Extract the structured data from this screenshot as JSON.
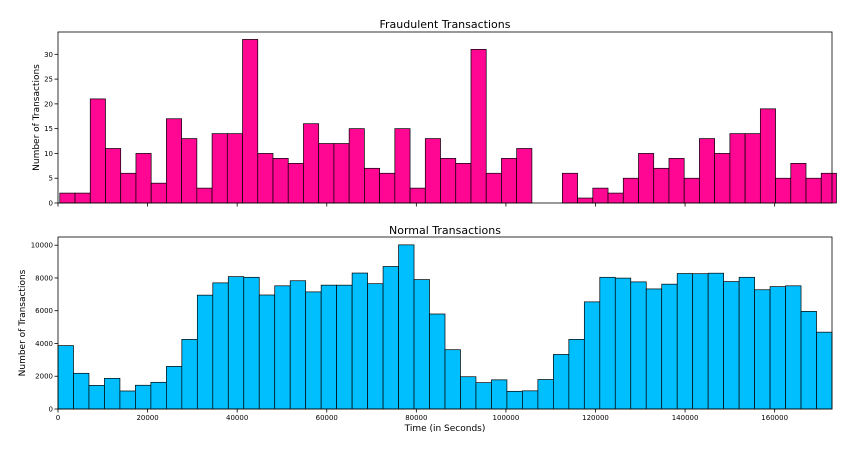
{
  "chart_data": [
    {
      "type": "bar",
      "title": "Fraudulent Transactions",
      "xlabel": "",
      "ylabel": "Number of Transactions",
      "xlim": [
        0,
        172800
      ],
      "ylim": [
        0,
        34.5
      ],
      "y_ticks": [
        0,
        5,
        10,
        15,
        20,
        25,
        30
      ],
      "x_ticks": [
        0,
        20000,
        40000,
        60000,
        80000,
        100000,
        120000,
        140000,
        160000
      ],
      "x_tick_labels_visible": false,
      "bin_width": 3400,
      "bin_start": 400,
      "bar_color": "#ff0693",
      "edge_color": "#000000",
      "values": [
        2,
        2,
        21,
        11,
        6,
        10,
        4,
        17,
        13,
        3,
        14,
        14,
        33,
        10,
        9,
        8,
        16,
        12,
        12,
        15,
        7,
        6,
        15,
        3,
        13,
        9,
        8,
        31,
        6,
        9,
        11,
        0,
        0,
        6,
        1,
        3,
        2,
        5,
        10,
        7,
        9,
        5,
        13,
        10,
        14,
        14,
        19,
        5,
        8,
        5,
        6
      ]
    },
    {
      "type": "bar",
      "title": "Normal Transactions",
      "xlabel": "Time (in Seconds)",
      "ylabel": "Number of Transactions",
      "xlim": [
        0,
        172800
      ],
      "ylim": [
        0,
        10500
      ],
      "y_ticks": [
        0,
        2000,
        4000,
        6000,
        8000,
        10000
      ],
      "x_ticks": [
        0,
        20000,
        40000,
        60000,
        80000,
        100000,
        120000,
        140000,
        160000
      ],
      "x_tick_labels_visible": true,
      "bin_width": 3456,
      "bin_start": 0,
      "bar_color": "#00bfff",
      "edge_color": "#000000",
      "values": [
        3870,
        2180,
        1440,
        1870,
        1100,
        1450,
        1630,
        2600,
        4250,
        6950,
        7700,
        8080,
        8040,
        6960,
        7520,
        7830,
        7150,
        7560,
        7560,
        8300,
        7650,
        8700,
        10020,
        7900,
        5800,
        3620,
        1970,
        1610,
        1780,
        1080,
        1110,
        1800,
        3330,
        4250,
        6540,
        8040,
        7990,
        7760,
        7330,
        7620,
        8270,
        8260,
        8290,
        7780,
        8040,
        7280,
        7470,
        7520,
        5960,
        4690
      ]
    }
  ]
}
